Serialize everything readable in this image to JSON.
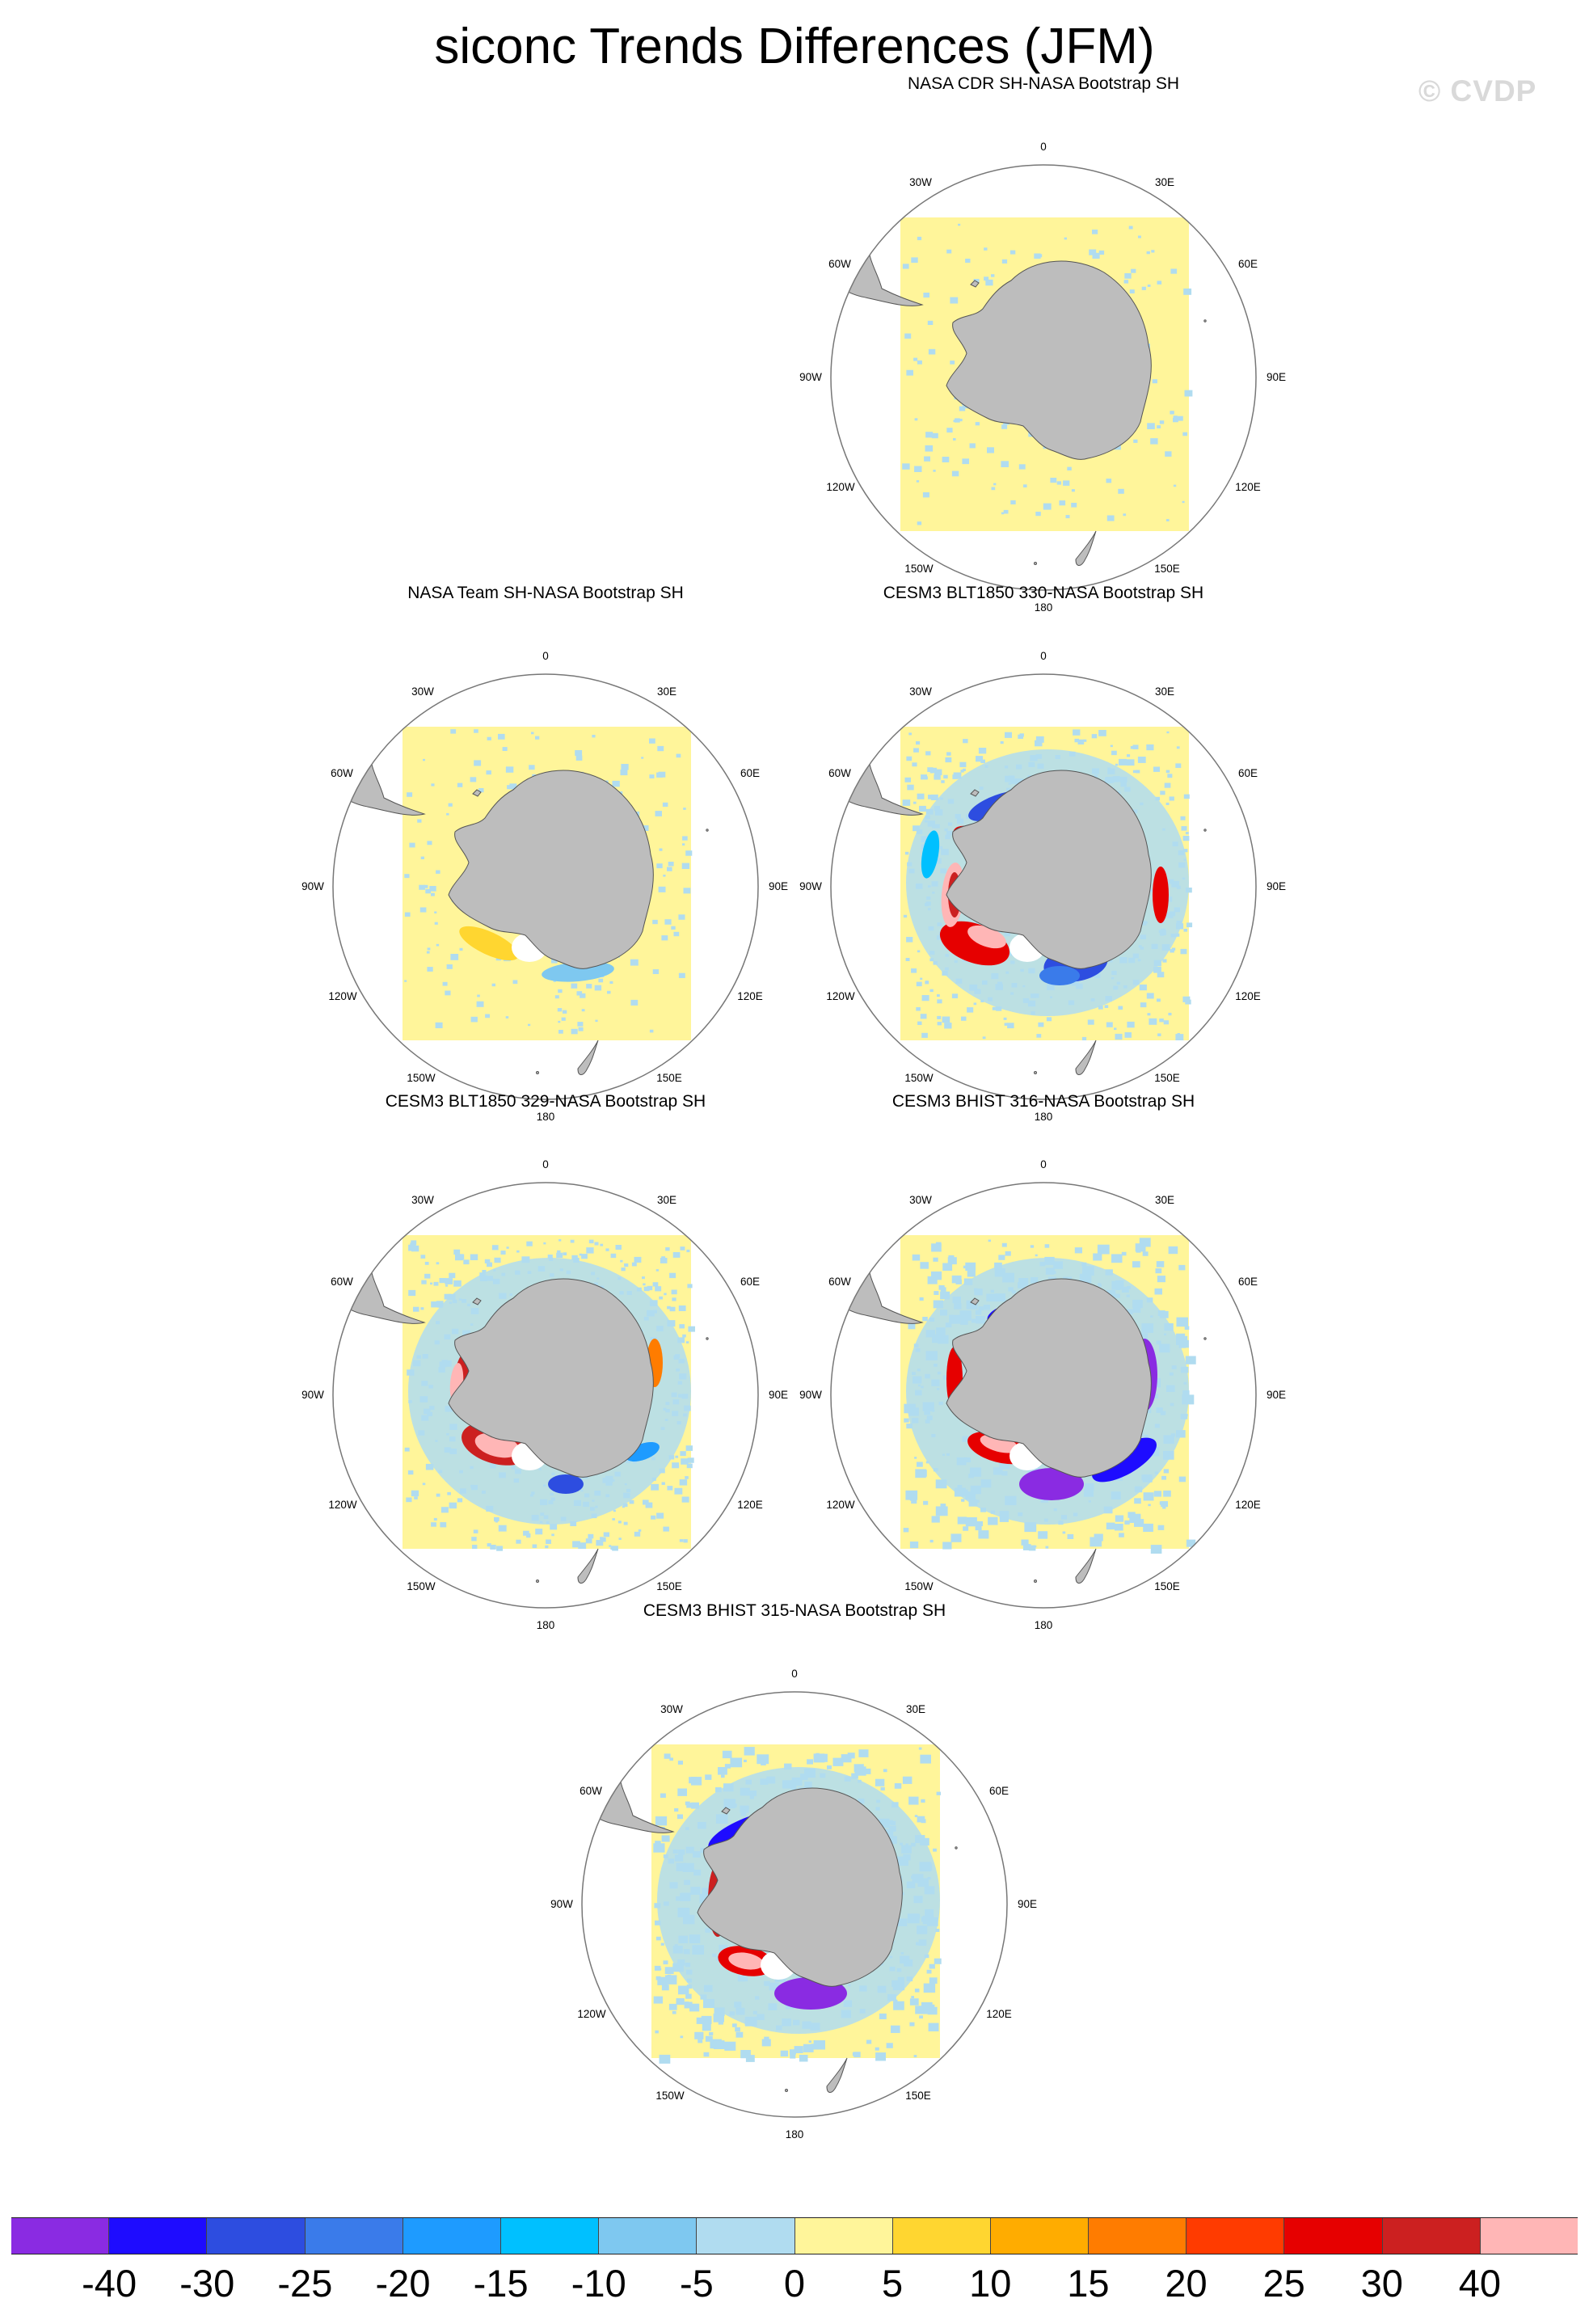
{
  "title": "siconc Trends Differences (JFM)",
  "watermark": "© CVDP",
  "longitude_labels": {
    "top": "0",
    "bottom": "180",
    "n30w": "30W",
    "n30e": "30E",
    "n60w": "60W",
    "n60e": "60E",
    "w90": "90W",
    "e90": "90E",
    "s120w": "120W",
    "s120e": "120E",
    "s150w": "150W",
    "s150e": "150E"
  },
  "panels": [
    {
      "id": "p1",
      "title": "NASA CDR SH-NASA Bootstrap SH",
      "pattern": "low"
    },
    {
      "id": "p2",
      "title": "NASA Team SH-NASA Bootstrap SH",
      "pattern": "low-plus"
    },
    {
      "id": "p3",
      "title": "CESM3 BLT1850 330-NASA Bootstrap SH",
      "pattern": "mixed-warm"
    },
    {
      "id": "p4",
      "title": "CESM3 BLT1850 329-NASA Bootstrap SH",
      "pattern": "mixed-warm2"
    },
    {
      "id": "p5",
      "title": "CESM3 BHIST 316-NASA Bootstrap SH",
      "pattern": "mixed-cool"
    },
    {
      "id": "p6",
      "title": "CESM3 BHIST 315-NASA Bootstrap SH",
      "pattern": "mixed-cool2"
    }
  ],
  "colorbar": {
    "labels": [
      "-40",
      "-30",
      "-25",
      "-20",
      "-15",
      "-10",
      "-5",
      "0",
      "5",
      "10",
      "15",
      "20",
      "25",
      "30",
      "40"
    ],
    "colors": [
      "#8a2be2",
      "#1e0cff",
      "#2d4de0",
      "#3a7bea",
      "#1e9bff",
      "#00c0ff",
      "#7ec8f0",
      "#b0dcf0",
      "#fff59a",
      "#ffd630",
      "#ffac00",
      "#ff7c00",
      "#ff3b00",
      "#e60000",
      "#cc2020",
      "#ffb6b6"
    ]
  },
  "legend_values": {
    "levels": [
      -40,
      -30,
      -25,
      -20,
      -15,
      -10,
      -5,
      0,
      5,
      10,
      15,
      20,
      25,
      30,
      40
    ]
  }
}
